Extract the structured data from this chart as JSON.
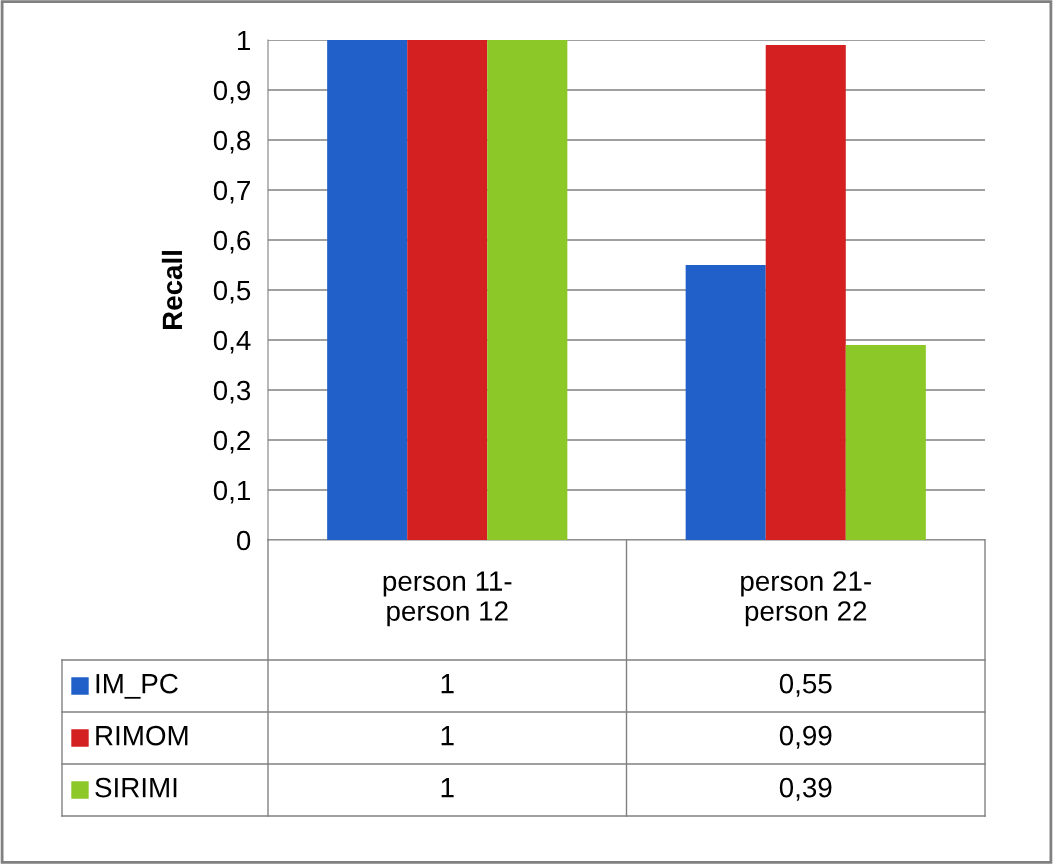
{
  "chart_data": {
    "type": "bar",
    "ylabel": "Recall",
    "categories": [
      "person 11-\nperson 12",
      "person 21-\nperson 22"
    ],
    "series": [
      {
        "name": "IM_PC",
        "color": "#2060c8",
        "values": [
          1,
          0.55
        ],
        "value_labels": [
          "1",
          "0,55"
        ]
      },
      {
        "name": "RIMOM",
        "color": "#d42020",
        "values": [
          1,
          0.99
        ],
        "value_labels": [
          "1",
          "0,99"
        ]
      },
      {
        "name": "SIRIMI",
        "color": "#8cc828",
        "values": [
          1,
          0.39
        ],
        "value_labels": [
          "1",
          "0,39"
        ]
      }
    ],
    "ylim": [
      0,
      1
    ],
    "yticks": [
      {
        "value": 0,
        "label": "0"
      },
      {
        "value": 0.1,
        "label": "0,1"
      },
      {
        "value": 0.2,
        "label": "0,2"
      },
      {
        "value": 0.3,
        "label": "0,3"
      },
      {
        "value": 0.4,
        "label": "0,4"
      },
      {
        "value": 0.5,
        "label": "0,5"
      },
      {
        "value": 0.6,
        "label": "0,6"
      },
      {
        "value": 0.7,
        "label": "0,7"
      },
      {
        "value": 0.8,
        "label": "0,8"
      },
      {
        "value": 0.9,
        "label": "0,9"
      },
      {
        "value": 1,
        "label": "1"
      }
    ],
    "grid": "y",
    "legend": "bottom"
  }
}
